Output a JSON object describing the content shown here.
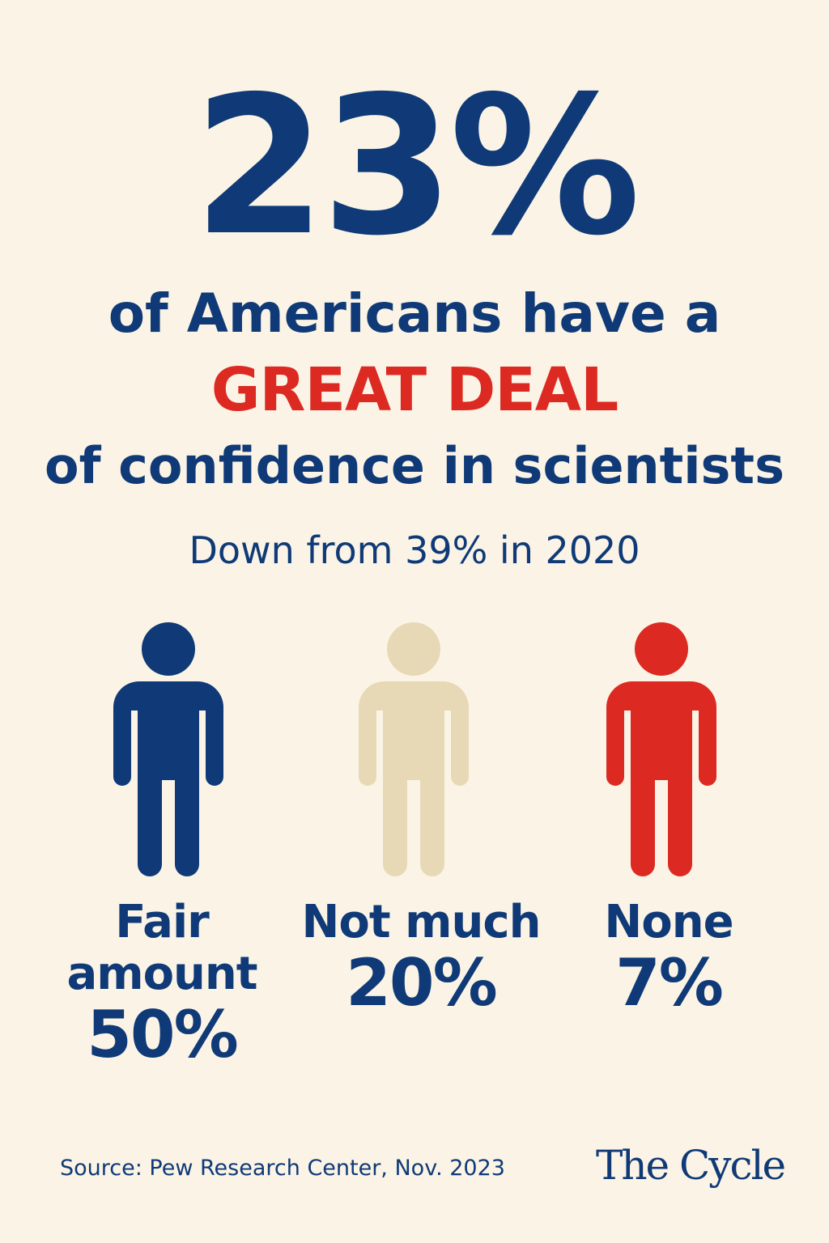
{
  "colors": {
    "background": "#fbf4e6",
    "navy": "#0f3a77",
    "red": "#dc2a22",
    "beige": "#e8d9b6"
  },
  "headline": {
    "stat": "23%",
    "line1": "of Americans have a",
    "emphasis": "GREAT DEAL",
    "line3": "of confidence in scientists",
    "subline": "Down from 39% in 2020"
  },
  "groups": [
    {
      "label": "Fair amount",
      "label_line1": "Fair",
      "label_line2": "amount",
      "percent": "50%",
      "value": 50,
      "color": "#0f3a77",
      "icon": "person-icon"
    },
    {
      "label": "Not much",
      "percent": "20%",
      "value": 20,
      "color": "#e8d9b6",
      "icon": "person-icon"
    },
    {
      "label": "None",
      "percent": "7%",
      "value": 7,
      "color": "#dc2a22",
      "icon": "person-icon"
    }
  ],
  "footer": {
    "source": "Source: Pew Research Center, Nov. 2023",
    "brand": "The Cycle"
  }
}
